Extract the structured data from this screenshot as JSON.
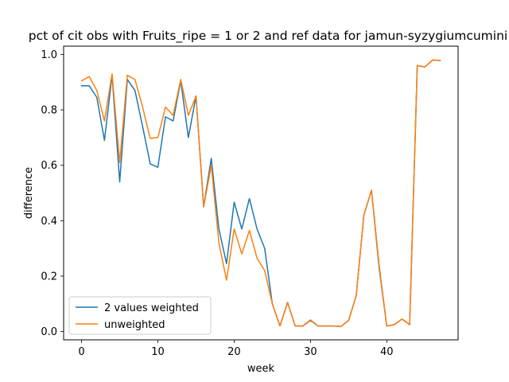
{
  "chart_data": {
    "type": "line",
    "title": "pct of cit obs with Fruits_ripe = 1 or 2 and ref data for jamun-syzygiumcumini",
    "xlabel": "week",
    "ylabel": "difference",
    "xlim": [
      -2.35,
      49.35
    ],
    "ylim": [
      -0.03,
      1.03
    ],
    "xticks": [
      0,
      10,
      20,
      30,
      40
    ],
    "yticks": [
      0.0,
      0.2,
      0.4,
      0.6,
      0.8,
      1.0
    ],
    "xtick_labels": [
      "0",
      "10",
      "20",
      "30",
      "40"
    ],
    "ytick_labels": [
      "0.0",
      "0.2",
      "0.4",
      "0.6",
      "0.8",
      "1.0"
    ],
    "legend_position": "lower-left",
    "grid": false,
    "x": [
      0,
      1,
      2,
      3,
      4,
      5,
      6,
      7,
      8,
      9,
      10,
      11,
      12,
      13,
      14,
      15,
      16,
      17,
      18,
      19,
      20,
      21,
      22,
      23,
      24,
      25,
      26,
      27,
      28,
      29,
      30,
      31,
      32,
      33,
      34,
      35,
      36,
      37,
      38,
      39,
      40,
      41,
      42,
      43,
      44,
      45,
      46,
      47
    ],
    "series": [
      {
        "name": "2 values weighted",
        "color": "#1f77b4",
        "values": [
          0.887,
          0.887,
          0.845,
          0.69,
          0.925,
          0.54,
          0.91,
          0.87,
          0.74,
          0.605,
          0.593,
          0.775,
          0.76,
          0.905,
          0.7,
          0.85,
          0.45,
          0.625,
          0.37,
          0.245,
          0.467,
          0.37,
          0.48,
          0.37,
          0.3,
          0.1,
          0.02,
          0.105,
          0.02,
          0.02,
          0.04,
          0.02,
          0.02,
          0.02,
          0.018,
          0.04,
          0.13,
          0.42,
          0.51,
          0.23,
          0.02,
          0.025,
          0.045,
          0.025,
          0.96,
          0.955,
          0.98,
          0.978
        ]
      },
      {
        "name": "unweighted",
        "color": "#ff7f0e",
        "values": [
          0.905,
          0.92,
          0.87,
          0.76,
          0.93,
          0.61,
          0.925,
          0.91,
          0.81,
          0.697,
          0.7,
          0.81,
          0.78,
          0.91,
          0.78,
          0.85,
          0.45,
          0.6,
          0.32,
          0.185,
          0.37,
          0.28,
          0.365,
          0.265,
          0.22,
          0.1,
          0.02,
          0.105,
          0.02,
          0.02,
          0.042,
          0.02,
          0.02,
          0.02,
          0.018,
          0.04,
          0.13,
          0.42,
          0.51,
          0.24,
          0.02,
          0.025,
          0.045,
          0.025,
          0.96,
          0.955,
          0.98,
          0.978
        ]
      }
    ]
  }
}
